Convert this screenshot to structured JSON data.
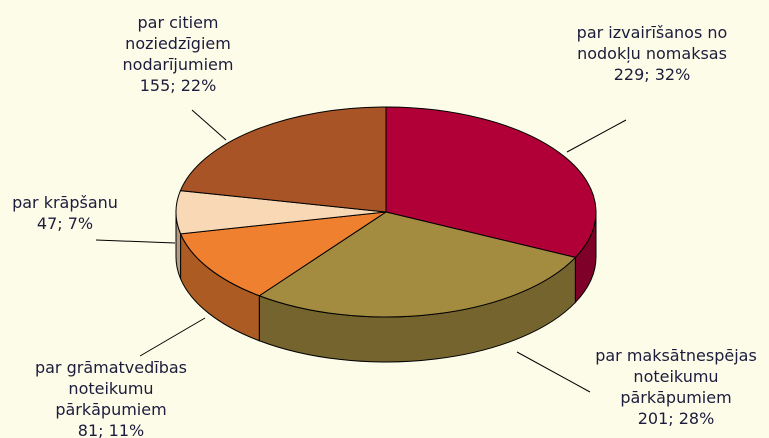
{
  "chart_data": {
    "type": "pie",
    "three_d": true,
    "categories": [
      "par izvairīšanos no nodokļu nomaksas",
      "par maksātnespējas noteikumu pārkāpumiem",
      "par grāmatvedības noteikumu pārkāpumiem",
      "par krāpšanu",
      "par citiem noziedzīgiem nodarījumiem"
    ],
    "values": [
      229,
      201,
      81,
      47,
      155
    ],
    "value_labels": [
      "229; 32%",
      "201; 28%",
      "81; 11%",
      "47; 7%",
      "155; 22%"
    ],
    "colors": [
      "#b10037",
      "#a38b40",
      "#ef8030",
      "#f9d8b6",
      "#a85426"
    ]
  }
}
